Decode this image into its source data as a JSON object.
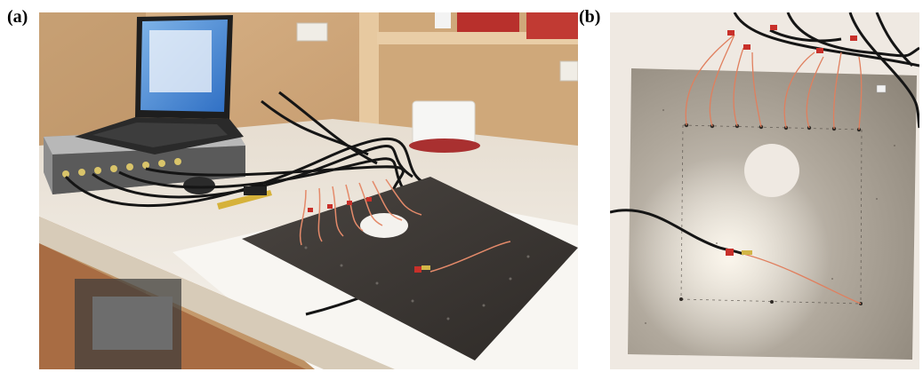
{
  "figure": {
    "panels": [
      {
        "label": "(a)",
        "content": "photo-experimental-setup"
      },
      {
        "label": "(b)",
        "content": "photo-steel-plate-with-sensors"
      }
    ]
  },
  "colors": {
    "plate_dark": "#3a3633",
    "plate_steel": "#b8b0a4",
    "wall_wood": "#c89e6e",
    "desk_white": "#f1ede6",
    "floor_wood": "#b07850",
    "cable_black": "#151515",
    "wire_copper": "#e48a6a",
    "tape_red": "#c8302a"
  }
}
